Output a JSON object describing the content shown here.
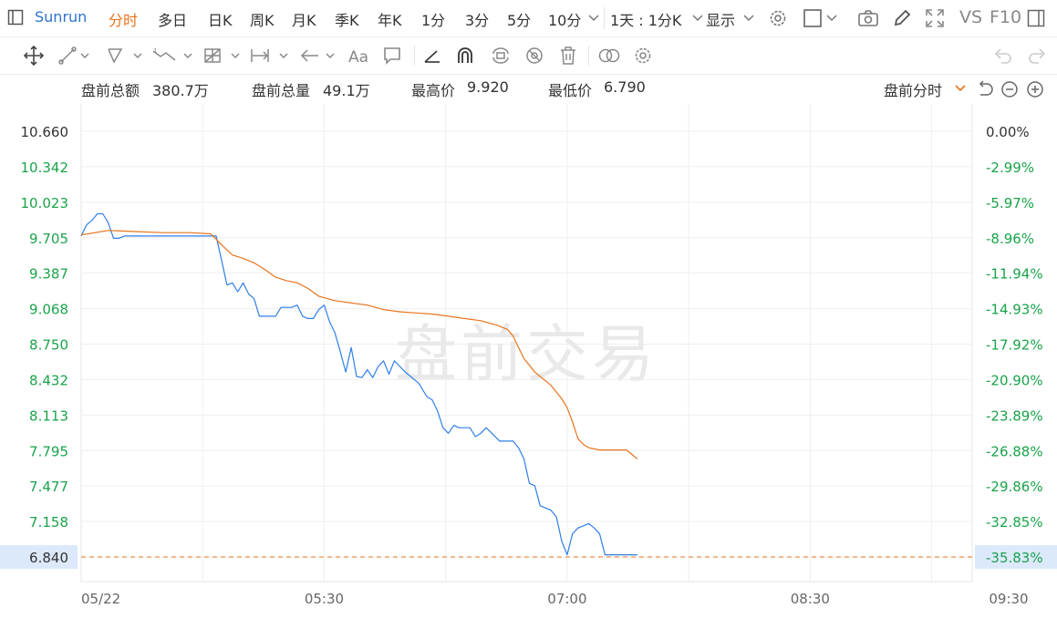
{
  "toolbar": {
    "symbol": "Sunrun",
    "periods": [
      "分时",
      "多日",
      "日K",
      "周K",
      "月K",
      "季K",
      "年K",
      "1分",
      "3分",
      "5分",
      "10分"
    ],
    "active_period": "分时",
    "range": "1天 : 1分K",
    "display": "显示",
    "vs": "VS",
    "f10": "F10"
  },
  "tools": [
    "move-icon",
    "line-tool-icon",
    "polygon-tool-icon",
    "wave-tool-icon",
    "chart-grid-tool-icon",
    "measure-tool-icon",
    "arrow-tool-icon",
    "text-tool-icon",
    "comment-tool-icon",
    "angle-tool-icon",
    "magnet-icon",
    "sync-icon",
    "hide-icon",
    "delete-icon",
    "compare-icon",
    "settings-icon",
    "undo-icon",
    "redo-icon"
  ],
  "info": {
    "amount_label": "盘前总额",
    "amount_value": "380.7万",
    "volume_label": "盘前总量",
    "volume_value": "49.1万",
    "high_label": "最高价",
    "high_value": "9.920",
    "low_label": "最低价",
    "low_value": "6.790",
    "session_selector": "盘前分时"
  },
  "watermark": "盘前交易",
  "chart_data": {
    "type": "line",
    "y_ticks": [
      "10.660",
      "10.342",
      "10.023",
      "9.705",
      "9.387",
      "9.068",
      "8.750",
      "8.432",
      "8.113",
      "7.795",
      "7.477",
      "7.158",
      "6.840"
    ],
    "pct_ticks": [
      "0.00%",
      "-2.99%",
      "-5.97%",
      "-8.96%",
      "-11.94%",
      "-14.93%",
      "-17.92%",
      "-20.90%",
      "-23.89%",
      "-26.88%",
      "-29.86%",
      "-32.85%",
      "-35.83%"
    ],
    "x_ticks": [
      "05/22",
      "05:30",
      "07:00",
      "08:30",
      "09:30"
    ],
    "ylim": [
      6.84,
      10.66
    ],
    "xlim": [
      "04:00",
      "09:30"
    ],
    "current_price_line": 6.84,
    "colors": {
      "price": "#2f7ee8",
      "avg": "#e8731c",
      "up": "#333333",
      "down": "#1aa34a",
      "ref": "#e8731c"
    },
    "series": [
      {
        "name": "price",
        "x": [
          "04:00",
          "04:02",
          "04:04",
          "04:06",
          "04:08",
          "04:10",
          "04:12",
          "04:14",
          "04:16",
          "04:18",
          "04:20",
          "04:22",
          "04:24",
          "04:26",
          "04:28",
          "04:30",
          "04:35",
          "04:40",
          "04:45",
          "04:50",
          "04:52",
          "04:54",
          "04:56",
          "04:58",
          "05:00",
          "05:02",
          "05:04",
          "05:06",
          "05:08",
          "05:10",
          "05:12",
          "05:14",
          "05:16",
          "05:18",
          "05:20",
          "05:22",
          "05:24",
          "05:26",
          "05:28",
          "05:30",
          "05:32",
          "05:34",
          "05:36",
          "05:38",
          "05:40",
          "05:42",
          "05:44",
          "05:46",
          "05:48",
          "05:50",
          "05:52",
          "05:54",
          "05:56",
          "05:58",
          "06:00",
          "06:05",
          "06:08",
          "06:10",
          "06:12",
          "06:14",
          "06:16",
          "06:18",
          "06:20",
          "06:22",
          "06:24",
          "06:26",
          "06:28",
          "06:30",
          "06:35",
          "06:40",
          "06:42",
          "06:44",
          "06:46",
          "06:48",
          "06:50",
          "06:52",
          "06:54",
          "06:56",
          "06:58",
          "07:00",
          "07:02",
          "07:04",
          "07:06",
          "07:08",
          "07:10",
          "07:12",
          "07:14",
          "07:16",
          "07:18",
          "07:20",
          "07:22",
          "07:24",
          "07:26"
        ],
        "values": [
          9.72,
          9.82,
          9.86,
          9.92,
          9.92,
          9.84,
          9.7,
          9.7,
          9.72,
          9.72,
          9.72,
          9.72,
          9.72,
          9.72,
          9.72,
          9.72,
          9.72,
          9.72,
          9.72,
          9.72,
          9.5,
          9.28,
          9.3,
          9.22,
          9.3,
          9.2,
          9.16,
          9.0,
          9.0,
          9.0,
          9.0,
          9.08,
          9.08,
          9.08,
          9.1,
          9.0,
          8.98,
          8.98,
          9.06,
          9.1,
          8.95,
          8.85,
          8.68,
          8.5,
          8.72,
          8.46,
          8.45,
          8.52,
          8.45,
          8.55,
          8.6,
          8.48,
          8.6,
          8.55,
          8.5,
          8.4,
          8.28,
          8.25,
          8.15,
          8.0,
          7.95,
          8.02,
          8.0,
          8.0,
          8.0,
          7.92,
          7.95,
          8.0,
          7.88,
          7.88,
          7.82,
          7.72,
          7.5,
          7.48,
          7.3,
          7.28,
          7.26,
          7.2,
          6.98,
          6.86,
          7.05,
          7.1,
          7.12,
          7.14,
          7.1,
          7.05,
          6.86,
          6.86,
          6.86,
          6.86,
          6.86,
          6.86,
          6.86
        ]
      },
      {
        "name": "avg",
        "x": [
          "04:00",
          "04:10",
          "04:20",
          "04:30",
          "04:40",
          "04:48",
          "04:52",
          "04:56",
          "05:00",
          "05:04",
          "05:08",
          "05:12",
          "05:16",
          "05:20",
          "05:24",
          "05:28",
          "05:34",
          "05:40",
          "05:46",
          "05:52",
          "05:58",
          "06:04",
          "06:10",
          "06:16",
          "06:22",
          "06:28",
          "06:34",
          "06:38",
          "06:40",
          "06:42",
          "06:44",
          "06:46",
          "06:48",
          "06:50",
          "06:52",
          "06:54",
          "06:56",
          "06:58",
          "07:00",
          "07:02",
          "07:04",
          "07:06",
          "07:08",
          "07:10",
          "07:12",
          "07:14",
          "07:16",
          "07:18",
          "07:20",
          "07:22",
          "07:24",
          "07:26"
        ],
        "values": [
          9.73,
          9.77,
          9.76,
          9.75,
          9.75,
          9.74,
          9.64,
          9.55,
          9.52,
          9.48,
          9.42,
          9.35,
          9.32,
          9.3,
          9.25,
          9.18,
          9.14,
          9.12,
          9.1,
          9.06,
          9.04,
          9.03,
          9.02,
          9.0,
          8.98,
          8.96,
          8.92,
          8.88,
          8.82,
          8.72,
          8.62,
          8.56,
          8.5,
          8.46,
          8.42,
          8.38,
          8.32,
          8.26,
          8.18,
          8.05,
          7.9,
          7.85,
          7.82,
          7.81,
          7.8,
          7.8,
          7.8,
          7.8,
          7.8,
          7.8,
          7.76,
          7.72
        ]
      }
    ]
  }
}
